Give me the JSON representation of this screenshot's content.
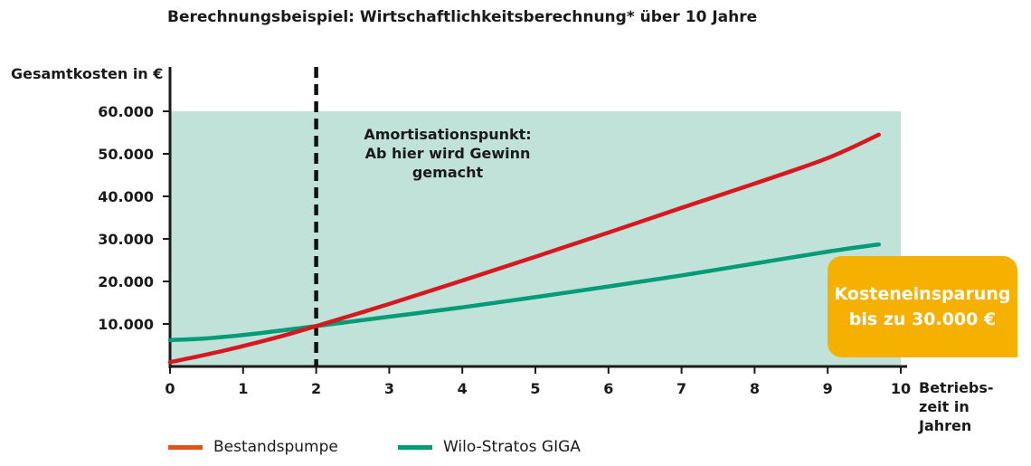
{
  "chart_data": {
    "type": "line",
    "title": "Berechnungsbeispiel: Wirtschaftlichkeitsberechnung* über 10 Jahre",
    "ylabel": "Gesamtkosten in €",
    "xlabel": "Betriebs-\nzeit in\nJahren",
    "xlim": [
      0,
      10
    ],
    "ylim": [
      0,
      60000
    ],
    "xticks": [
      "0",
      "1",
      "2",
      "3",
      "4",
      "5",
      "6",
      "7",
      "8",
      "9",
      "10"
    ],
    "yticks": [
      {
        "value": 10000,
        "label": "10.000"
      },
      {
        "value": 20000,
        "label": "20.000"
      },
      {
        "value": 30000,
        "label": "30.000"
      },
      {
        "value": 40000,
        "label": "40.000"
      },
      {
        "value": 50000,
        "label": "50.000"
      },
      {
        "value": 60000,
        "label": "60.000"
      }
    ],
    "series": [
      {
        "name": "Bestandspumpe",
        "color": "#d7191f",
        "x": [
          0,
          0.5,
          1,
          1.5,
          2,
          3,
          4,
          5,
          6,
          7,
          8,
          9,
          9.7
        ],
        "y": [
          1000,
          2800,
          4800,
          7000,
          9500,
          14700,
          20200,
          25800,
          31500,
          37300,
          43000,
          49000,
          54500
        ]
      },
      {
        "name": "Wilo-Stratos GIGA",
        "color": "#009b77",
        "x": [
          0,
          0.5,
          1,
          1.5,
          2,
          3,
          4,
          5,
          6,
          7,
          8,
          9,
          9.7
        ],
        "y": [
          6200,
          6600,
          7400,
          8400,
          9500,
          11700,
          13900,
          16300,
          18800,
          21400,
          24200,
          27000,
          28700
        ]
      }
    ],
    "amortization_x": 2,
    "annotation": "Amortisationspunkt:\nAb hier wird Gewinn\ngemacht",
    "savings_box": "Kosteneinsparung\nbis zu 30.000 €",
    "colors": {
      "background_area": "#c0e2d8",
      "savings_box": "#f6b000",
      "legend_bestand": "#e0531b",
      "legend_wilo": "#009b77",
      "axis": "#1a1a1a"
    },
    "grid": false,
    "legend_position": "bottom"
  }
}
